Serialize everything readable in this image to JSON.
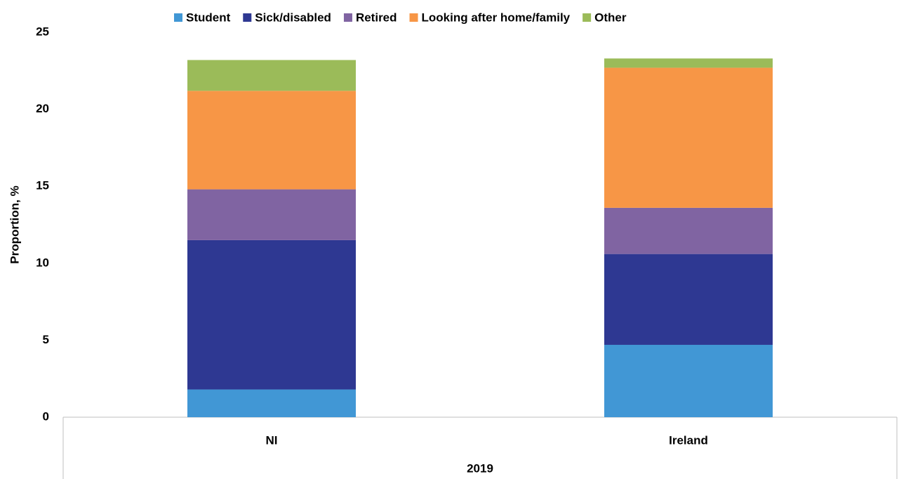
{
  "chart_data": {
    "type": "stacked_bar",
    "y_label": "Proportion, %",
    "x_group": "2019",
    "categories": [
      "NI",
      "Ireland"
    ],
    "series": [
      {
        "name": "Student",
        "color": "#4197d5",
        "values": [
          1.8,
          4.7
        ]
      },
      {
        "name": "Sick/disabled",
        "color": "#2e3892",
        "values": [
          9.7,
          5.9
        ]
      },
      {
        "name": "Retired",
        "color": "#8064a2",
        "values": [
          3.3,
          3.0
        ]
      },
      {
        "name": "Looking after home/family",
        "color": "#f79646",
        "values": [
          6.4,
          9.1
        ]
      },
      {
        "name": "Other",
        "color": "#9bbb59",
        "values": [
          2.0,
          0.6
        ]
      }
    ],
    "ylim": [
      0,
      25
    ],
    "yticks": [
      0,
      5,
      10,
      15,
      20,
      25
    ],
    "legend": "top",
    "grid": false
  }
}
